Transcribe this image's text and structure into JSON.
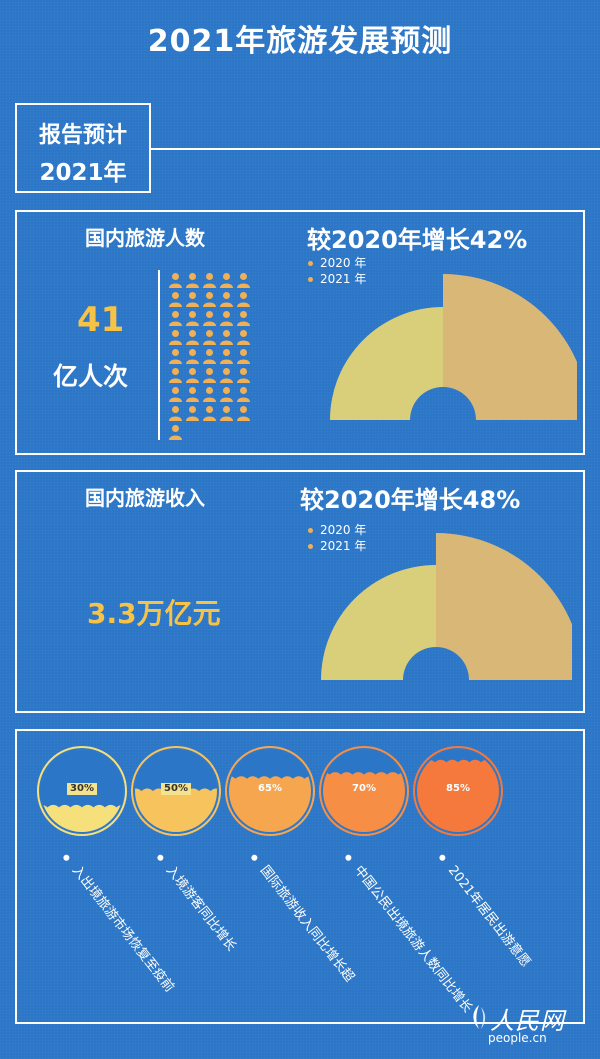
{
  "title": "2021年旅游发展预测",
  "report": {
    "line1": "报告预计",
    "line2": "2021年"
  },
  "section1": {
    "heading": "国内旅游人数",
    "growth": "较2020年增长42%",
    "legend": [
      "2020 年",
      "2021 年"
    ],
    "big_number": "41",
    "unit": "亿人次",
    "icon": "person-icon",
    "icon_count": 41,
    "colors": {
      "y2020": "#d9cf7a",
      "y2021": "#d9b877",
      "number": "#f7c347",
      "icons": "#f1b055"
    }
  },
  "section2": {
    "heading": "国内旅游收入",
    "growth": "较2020年增长48%",
    "legend": [
      "2020 年",
      "2021 年"
    ],
    "value": "3.3万亿元",
    "colors": {
      "y2020": "#d9cf7a",
      "y2021": "#d9b877",
      "value": "#f7c347"
    }
  },
  "section3": {
    "items": [
      {
        "pct": "30%",
        "fill": 0.3,
        "color": "#f5e07c",
        "label": "入出境旅游市场恢复至疫前"
      },
      {
        "pct": "50%",
        "fill": 0.5,
        "color": "#f7c35c",
        "label": "入境游客同比增长"
      },
      {
        "pct": "65%",
        "fill": 0.65,
        "color": "#f7a650",
        "label": "国际旅游收入同比增长超"
      },
      {
        "pct": "70%",
        "fill": 0.7,
        "color": "#f78e45",
        "label": "中国公民出境旅游人数同比增长"
      },
      {
        "pct": "85%",
        "fill": 0.85,
        "color": "#f5793c",
        "label": "2021年居民出游意愿"
      }
    ]
  },
  "logo": {
    "name": "人民网",
    "url": "people.cn"
  }
}
